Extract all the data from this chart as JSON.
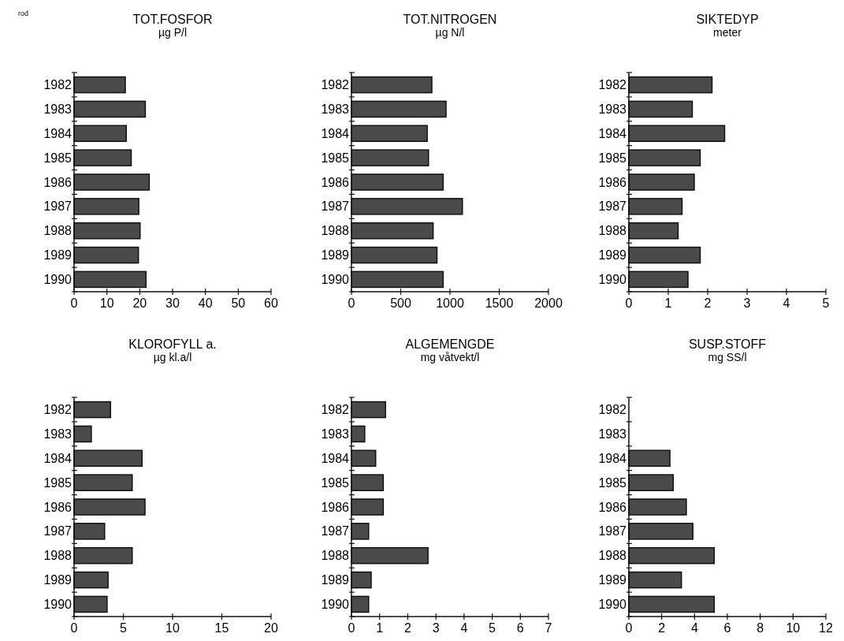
{
  "chart_data": [
    {
      "type": "bar",
      "orientation": "horizontal",
      "title": "TOT.FOSFOR",
      "subtitle": "µg P/l",
      "annotations": [
        "rod"
      ],
      "categories": [
        "1982",
        "1983",
        "1984",
        "1985",
        "1986",
        "1987",
        "1988",
        "1989",
        "1990"
      ],
      "values": [
        15.6,
        21.7,
        15.9,
        17.4,
        22.9,
        19.7,
        20.1,
        19.6,
        21.9
      ],
      "color": "#4a4a4a",
      "xlim": [
        0,
        60
      ],
      "xticks": [
        0,
        10,
        20,
        30,
        40,
        50,
        60
      ],
      "grid": false
    },
    {
      "type": "bar",
      "orientation": "horizontal",
      "title": "TOT.NITROGEN",
      "subtitle": "µg N/l",
      "categories": [
        "1982",
        "1983",
        "1984",
        "1985",
        "1986",
        "1987",
        "1988",
        "1989",
        "1990"
      ],
      "values": [
        816,
        960,
        769,
        782,
        931,
        1126,
        829,
        868,
        931
      ],
      "color": "#4a4a4a",
      "xlim": [
        0,
        2000
      ],
      "xticks": [
        0,
        500,
        1000,
        1500,
        2000
      ],
      "grid": false
    },
    {
      "type": "bar",
      "orientation": "horizontal",
      "title": "SIKTEDYP",
      "subtitle": "meter",
      "categories": [
        "1982",
        "1983",
        "1984",
        "1985",
        "1986",
        "1987",
        "1988",
        "1989",
        "1990"
      ],
      "values": [
        2.11,
        1.61,
        2.43,
        1.81,
        1.66,
        1.35,
        1.25,
        1.81,
        1.5
      ],
      "color": "#4a4a4a",
      "xlim": [
        0,
        5
      ],
      "xticks": [
        0,
        1,
        2,
        3,
        4,
        5
      ],
      "grid": false
    },
    {
      "type": "bar",
      "orientation": "horizontal",
      "title": "KLOROFYLL a.",
      "subtitle": "µg kl.a/l",
      "categories": [
        "1982",
        "1983",
        "1984",
        "1985",
        "1986",
        "1987",
        "1988",
        "1989",
        "1990"
      ],
      "values": [
        3.7,
        1.75,
        6.9,
        5.9,
        7.2,
        3.1,
        5.9,
        3.45,
        3.35
      ],
      "color": "#4a4a4a",
      "xlim": [
        0,
        20
      ],
      "xticks": [
        0,
        5,
        10,
        15,
        20
      ],
      "grid": false
    },
    {
      "type": "bar",
      "orientation": "horizontal",
      "title": "ALGEMENGDE",
      "subtitle": "mg våtvekt/l",
      "categories": [
        "1982",
        "1983",
        "1984",
        "1985",
        "1986",
        "1987",
        "1988",
        "1989",
        "1990"
      ],
      "values": [
        1.21,
        0.47,
        0.86,
        1.13,
        1.13,
        0.61,
        2.72,
        0.7,
        0.61
      ],
      "color": "#4a4a4a",
      "xlim": [
        0,
        7
      ],
      "xticks": [
        0,
        1,
        2,
        3,
        4,
        5,
        6,
        7
      ],
      "grid": false
    },
    {
      "type": "bar",
      "orientation": "horizontal",
      "title": "SUSP.STOFF",
      "subtitle": "mg SS/l",
      "categories": [
        "1982",
        "1983",
        "1984",
        "1985",
        "1986",
        "1987",
        "1988",
        "1989",
        "1990"
      ],
      "values": [
        null,
        null,
        2.5,
        2.7,
        3.5,
        3.9,
        5.2,
        3.2,
        5.2
      ],
      "color": "#4a4a4a",
      "xlim": [
        0,
        12
      ],
      "xticks": [
        0,
        2,
        4,
        6,
        8,
        10,
        12
      ],
      "grid": false
    }
  ]
}
